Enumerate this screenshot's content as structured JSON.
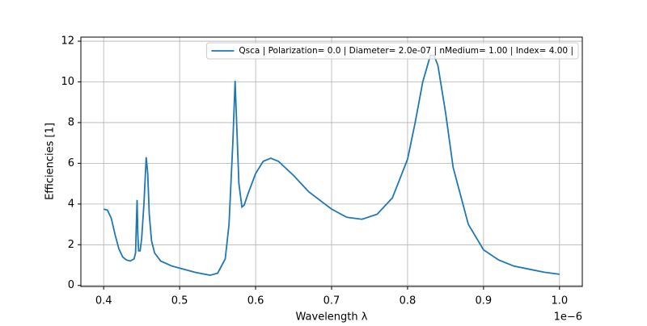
{
  "chart_data": {
    "type": "line",
    "x_label": "Wavelength λ",
    "y_label": "Efficiencies  [1]",
    "x_offset_label": "1e−6",
    "x": [
      0.4,
      0.405,
      0.41,
      0.415,
      0.42,
      0.425,
      0.43,
      0.435,
      0.44,
      0.442,
      0.443,
      0.444,
      0.445,
      0.446,
      0.448,
      0.45,
      0.453,
      0.456,
      0.458,
      0.46,
      0.463,
      0.467,
      0.475,
      0.49,
      0.5,
      0.52,
      0.54,
      0.55,
      0.56,
      0.565,
      0.57,
      0.573,
      0.575,
      0.578,
      0.582,
      0.585,
      0.59,
      0.6,
      0.61,
      0.62,
      0.63,
      0.65,
      0.67,
      0.7,
      0.72,
      0.74,
      0.76,
      0.78,
      0.8,
      0.81,
      0.82,
      0.83,
      0.835,
      0.84,
      0.85,
      0.86,
      0.88,
      0.9,
      0.92,
      0.94,
      0.96,
      0.98,
      1.0
    ],
    "series": [
      {
        "name": "Qsca | Polarization= 0.0 | Diameter= 2.0e-07 | nMedium= 1.00 | Index= 4.00 |",
        "color": "#1f77b4",
        "values": [
          3.75,
          3.7,
          3.3,
          2.5,
          1.8,
          1.4,
          1.25,
          1.2,
          1.3,
          1.6,
          3.0,
          4.2,
          2.5,
          1.7,
          1.7,
          2.3,
          4.0,
          6.3,
          5.5,
          3.5,
          2.2,
          1.6,
          1.2,
          0.95,
          0.85,
          0.65,
          0.5,
          0.6,
          1.3,
          3.0,
          7.0,
          10.05,
          8.0,
          5.0,
          3.85,
          3.95,
          4.5,
          5.5,
          6.1,
          6.25,
          6.1,
          5.4,
          4.6,
          3.75,
          3.35,
          3.25,
          3.5,
          4.3,
          6.2,
          8.0,
          10.0,
          11.3,
          11.3,
          10.8,
          8.5,
          5.8,
          3.0,
          1.75,
          1.25,
          0.95,
          0.8,
          0.65,
          0.55
        ]
      }
    ],
    "xlim": [
      0.37,
      1.03
    ],
    "ylim": [
      -0.05,
      12.2
    ],
    "xticks": [
      0.4,
      0.5,
      0.6,
      0.7,
      0.8,
      0.9,
      {
        "value": 1.0,
        "label": "1.0"
      }
    ],
    "yticks": [
      0,
      2,
      4,
      6,
      8,
      10,
      12
    ],
    "grid": true,
    "legend": "upper right"
  }
}
